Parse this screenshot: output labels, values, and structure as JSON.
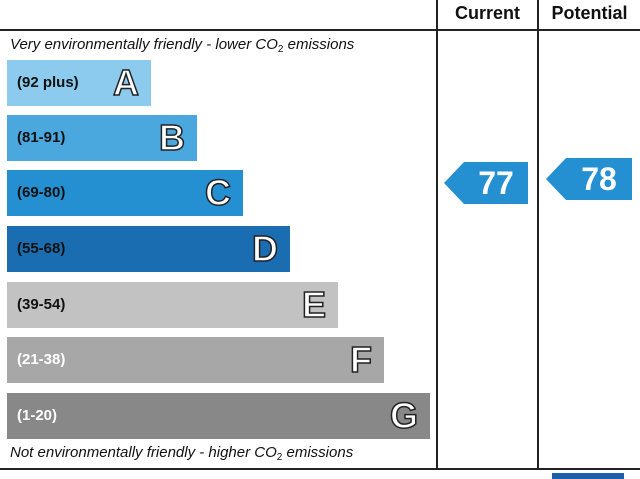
{
  "columns": {
    "current": "Current",
    "potential": "Potential"
  },
  "top_note": {
    "prefix": "Very environmentally friendly - lower CO",
    "sub": "2",
    "suffix": " emissions"
  },
  "bottom_note": {
    "prefix": "Not environmentally friendly - higher CO",
    "sub": "2",
    "suffix": " emissions"
  },
  "chart_data": {
    "type": "bar",
    "categories": [
      "A",
      "B",
      "C",
      "D",
      "E",
      "F",
      "G"
    ],
    "ranges": [
      "(92 plus)",
      "(81-91)",
      "(69-80)",
      "(55-68)",
      "(39-54)",
      "(21-38)",
      "(1-20)"
    ],
    "colors": [
      "#8ccbee",
      "#4aa8de",
      "#2490d2",
      "#1b6db1",
      "#c2c2c2",
      "#a7a7a7",
      "#888888"
    ],
    "range_text_colors": [
      "#111111",
      "#111111",
      "#111111",
      "#111111",
      "#111111",
      "#ffffff",
      "#ffffff"
    ],
    "ratings": {
      "current": 77,
      "potential": 78
    },
    "rating_color": "#2490d2"
  }
}
